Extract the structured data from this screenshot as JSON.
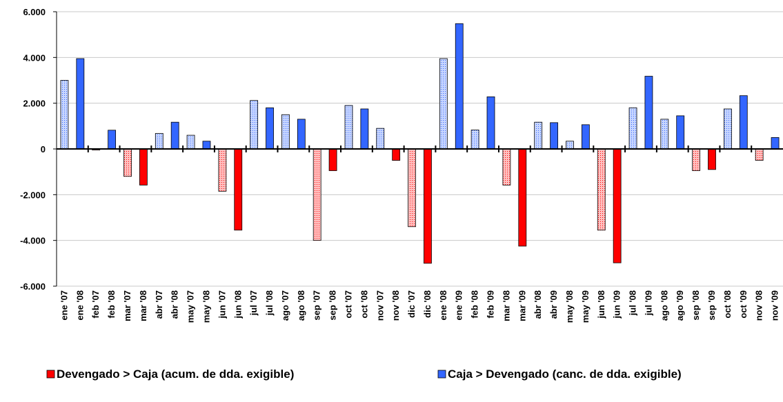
{
  "chart_data": {
    "type": "bar",
    "categories": [
      "ene '07",
      "ene '08",
      "feb '07",
      "feb '08",
      "mar '07",
      "mar '08",
      "abr '07",
      "abr '08",
      "may '07",
      "may '08",
      "jun '07",
      "jun '08",
      "jul '07",
      "jul '08",
      "ago '07",
      "ago '08",
      "sep '07",
      "sep '08",
      "oct '07",
      "oct '08",
      "nov '07",
      "nov '08",
      "dic '07",
      "dic '08",
      "ene '08",
      "ene '09",
      "feb '08",
      "feb '09",
      "mar '08",
      "mar '09",
      "abr '08",
      "abr '09",
      "may '08",
      "may '09",
      "jun '08",
      "jun '09",
      "jul '08",
      "jul '09",
      "ago '08",
      "ago '09",
      "sep '08",
      "sep '09",
      "oct '08",
      "oct '09",
      "nov '08",
      "nov '09"
    ],
    "values": [
      3000,
      3950,
      -50,
      820,
      -1200,
      -1580,
      680,
      1170,
      600,
      340,
      -1850,
      -3550,
      2120,
      1800,
      1500,
      1300,
      -4000,
      -950,
      1900,
      1750,
      900,
      -500,
      -3400,
      -5000,
      3950,
      5480,
      830,
      2280,
      -1580,
      -4250,
      1170,
      1150,
      340,
      1060,
      -3550,
      -4980,
      1800,
      3180,
      1300,
      1450,
      -950,
      -900,
      1750,
      2330,
      -500,
      500
    ],
    "legend": [
      {
        "name": "Devengado > Caja (acum. de dda. exigible)",
        "color": "#ff0000"
      },
      {
        "name": "Caja > Devengado (canc. de dda. exigible)",
        "color": "#3366ff"
      }
    ],
    "ylim": [
      -6000,
      6000
    ],
    "yticks": [
      {
        "value": -6000,
        "label": "-6.000"
      },
      {
        "value": -4000,
        "label": "-4.000"
      },
      {
        "value": -2000,
        "label": "-2.000"
      },
      0,
      {
        "value": 2000,
        "label": "2.000"
      },
      {
        "value": 4000,
        "label": "4.000"
      },
      {
        "value": 6000,
        "label": "6.000"
      }
    ],
    "grid": true
  }
}
